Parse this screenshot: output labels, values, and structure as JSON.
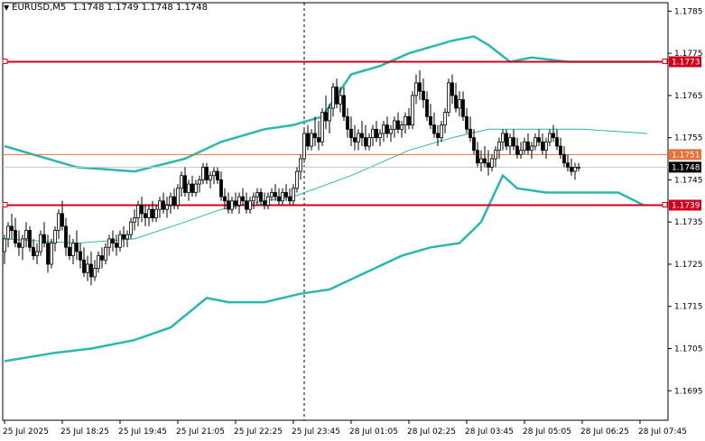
{
  "window": {
    "symbol": "EURUSD,M5",
    "ohlc": "1.1748 1.1749 1.1748 1.1748"
  },
  "colors": {
    "background": "#ffffff",
    "candle_border": "#000000",
    "candle_bull_fill": "#ffffff",
    "candle_bear_fill": "#000000",
    "bollinger": "#2ab7b0",
    "level_line": "#d0021b",
    "bid_line": "#e8703a",
    "axis": "#000000"
  },
  "chart_data": {
    "type": "candlestick",
    "title": "EURUSD,M5",
    "ylim": [
      1.1688,
      1.1787
    ],
    "y_ticks": [
      "1.1785",
      "1.1775",
      "1.1765",
      "1.1755",
      "1.1745",
      "1.1735",
      "1.1725",
      "1.1715",
      "1.1705",
      "1.1695"
    ],
    "x_ticks": [
      "25 Jul 2025",
      "25 Jul 18:25",
      "25 Jul 19:45",
      "25 Jul 21:05",
      "25 Jul 22:25",
      "25 Jul 23:45",
      "28 Jul 01:05",
      "28 Jul 02:25",
      "28 Jul 03:45",
      "28 Jul 05:05",
      "28 Jul 06:25",
      "28 Jul 07:45"
    ],
    "x_tick_index": [
      0,
      16,
      32,
      48,
      64,
      80,
      96,
      112,
      128,
      144,
      160,
      176
    ],
    "session_separator_index": 83,
    "levels": [
      {
        "price": 1.1773,
        "label": "1.1773",
        "style": "thick"
      },
      {
        "price": 1.1739,
        "label": "1.1739",
        "style": "thick"
      }
    ],
    "bid": {
      "price": 1.1751,
      "label": "1.1751"
    },
    "current_price": {
      "price": 1.1748,
      "label": "1.1748"
    },
    "candles": [
      [
        1.1728,
        1.1732,
        1.1725,
        1.1731
      ],
      [
        1.1731,
        1.1735,
        1.1729,
        1.1734
      ],
      [
        1.1734,
        1.1737,
        1.1731,
        1.1733
      ],
      [
        1.1733,
        1.1736,
        1.1729,
        1.173
      ],
      [
        1.173,
        1.1733,
        1.1727,
        1.1729
      ],
      [
        1.1729,
        1.1732,
        1.1726,
        1.1731
      ],
      [
        1.1731,
        1.1735,
        1.1729,
        1.1733
      ],
      [
        1.1733,
        1.1734,
        1.1728,
        1.1729
      ],
      [
        1.1729,
        1.1731,
        1.1726,
        1.1727
      ],
      [
        1.1727,
        1.173,
        1.1725,
        1.1728
      ],
      [
        1.1728,
        1.1733,
        1.1727,
        1.1732
      ],
      [
        1.1732,
        1.1735,
        1.1729,
        1.173
      ],
      [
        1.173,
        1.1732,
        1.1723,
        1.1725
      ],
      [
        1.1725,
        1.1731,
        1.1724,
        1.173
      ],
      [
        1.173,
        1.1734,
        1.1728,
        1.1733
      ],
      [
        1.1733,
        1.1738,
        1.1731,
        1.1737
      ],
      [
        1.1737,
        1.174,
        1.1733,
        1.1734
      ],
      [
        1.1734,
        1.1736,
        1.1727,
        1.1729
      ],
      [
        1.1729,
        1.1732,
        1.1726,
        1.1727
      ],
      [
        1.1727,
        1.1731,
        1.1725,
        1.173
      ],
      [
        1.173,
        1.1733,
        1.1726,
        1.1728
      ],
      [
        1.1728,
        1.173,
        1.1724,
        1.1726
      ],
      [
        1.1726,
        1.1729,
        1.1722,
        1.1723
      ],
      [
        1.1723,
        1.1727,
        1.1721,
        1.1725
      ],
      [
        1.1725,
        1.1728,
        1.172,
        1.1722
      ],
      [
        1.1722,
        1.1726,
        1.1721,
        1.1724
      ],
      [
        1.1724,
        1.1728,
        1.1723,
        1.1727
      ],
      [
        1.1727,
        1.1729,
        1.1724,
        1.1726
      ],
      [
        1.1726,
        1.173,
        1.1725,
        1.1729
      ],
      [
        1.1729,
        1.1732,
        1.1727,
        1.1731
      ],
      [
        1.1731,
        1.1733,
        1.1728,
        1.173
      ],
      [
        1.173,
        1.1732,
        1.1727,
        1.1729
      ],
      [
        1.1729,
        1.1733,
        1.1728,
        1.1732
      ],
      [
        1.1732,
        1.1734,
        1.1729,
        1.1731
      ],
      [
        1.1731,
        1.1733,
        1.1729,
        1.1732
      ],
      [
        1.1732,
        1.1736,
        1.1731,
        1.1735
      ],
      [
        1.1735,
        1.1738,
        1.1733,
        1.1736
      ],
      [
        1.1736,
        1.174,
        1.1734,
        1.1739
      ],
      [
        1.1739,
        1.1741,
        1.1735,
        1.1737
      ],
      [
        1.1737,
        1.1739,
        1.1734,
        1.1736
      ],
      [
        1.1736,
        1.1739,
        1.1734,
        1.1738
      ],
      [
        1.1738,
        1.174,
        1.1735,
        1.1736
      ],
      [
        1.1736,
        1.1739,
        1.1735,
        1.1738
      ],
      [
        1.1738,
        1.1741,
        1.1736,
        1.174
      ],
      [
        1.174,
        1.1742,
        1.1737,
        1.1738
      ],
      [
        1.1738,
        1.1741,
        1.1736,
        1.1739
      ],
      [
        1.1739,
        1.1742,
        1.1737,
        1.1741
      ],
      [
        1.1741,
        1.1743,
        1.1738,
        1.1739
      ],
      [
        1.1739,
        1.1744,
        1.1738,
        1.1743
      ],
      [
        1.1743,
        1.1747,
        1.1741,
        1.1746
      ],
      [
        1.1746,
        1.1748,
        1.1741,
        1.1742
      ],
      [
        1.1742,
        1.1745,
        1.174,
        1.1744
      ],
      [
        1.1744,
        1.1746,
        1.1741,
        1.1742
      ],
      [
        1.1742,
        1.1745,
        1.1741,
        1.1744
      ],
      [
        1.1744,
        1.1746,
        1.1742,
        1.1745
      ],
      [
        1.1745,
        1.1749,
        1.1744,
        1.1748
      ],
      [
        1.1748,
        1.1749,
        1.1744,
        1.1745
      ],
      [
        1.1745,
        1.1747,
        1.1743,
        1.1746
      ],
      [
        1.1746,
        1.1748,
        1.1744,
        1.1747
      ],
      [
        1.1747,
        1.1748,
        1.1744,
        1.1745
      ],
      [
        1.1745,
        1.1747,
        1.174,
        1.1741
      ],
      [
        1.1741,
        1.1743,
        1.1738,
        1.174
      ],
      [
        1.174,
        1.1742,
        1.1737,
        1.1738
      ],
      [
        1.1738,
        1.1741,
        1.1737,
        1.174
      ],
      [
        1.174,
        1.1742,
        1.1738,
        1.1739
      ],
      [
        1.1739,
        1.1742,
        1.1737,
        1.1741
      ],
      [
        1.1741,
        1.1743,
        1.1739,
        1.174
      ],
      [
        1.174,
        1.1742,
        1.1737,
        1.1738
      ],
      [
        1.1738,
        1.1741,
        1.1737,
        1.174
      ],
      [
        1.174,
        1.1742,
        1.1738,
        1.1741
      ],
      [
        1.1741,
        1.1743,
        1.1739,
        1.1742
      ],
      [
        1.1742,
        1.1743,
        1.1739,
        1.174
      ],
      [
        1.174,
        1.1742,
        1.1738,
        1.1739
      ],
      [
        1.1739,
        1.1742,
        1.1738,
        1.1741
      ],
      [
        1.1741,
        1.1743,
        1.174,
        1.1742
      ],
      [
        1.1742,
        1.1744,
        1.174,
        1.1741
      ],
      [
        1.1741,
        1.1743,
        1.1739,
        1.174
      ],
      [
        1.174,
        1.1743,
        1.1739,
        1.1742
      ],
      [
        1.1742,
        1.1744,
        1.174,
        1.1741
      ],
      [
        1.1741,
        1.1743,
        1.1739,
        1.174
      ],
      [
        1.174,
        1.1744,
        1.1739,
        1.1743
      ],
      [
        1.1743,
        1.1748,
        1.1742,
        1.1747
      ],
      [
        1.1747,
        1.1751,
        1.1745,
        1.175
      ],
      [
        1.175,
        1.1757,
        1.1749,
        1.1756
      ],
      [
        1.1756,
        1.1758,
        1.1752,
        1.1753
      ],
      [
        1.1753,
        1.1757,
        1.1752,
        1.1756
      ],
      [
        1.1756,
        1.176,
        1.1753,
        1.1755
      ],
      [
        1.1755,
        1.1759,
        1.1752,
        1.1754
      ],
      [
        1.1754,
        1.1762,
        1.1753,
        1.1761
      ],
      [
        1.1761,
        1.1765,
        1.1757,
        1.1759
      ],
      [
        1.1759,
        1.1763,
        1.1756,
        1.1762
      ],
      [
        1.1762,
        1.1768,
        1.176,
        1.1767
      ],
      [
        1.1767,
        1.1769,
        1.1762,
        1.1763
      ],
      [
        1.1763,
        1.1767,
        1.1761,
        1.1765
      ],
      [
        1.1765,
        1.1767,
        1.1759,
        1.176
      ],
      [
        1.176,
        1.1762,
        1.1755,
        1.1757
      ],
      [
        1.1757,
        1.176,
        1.1753,
        1.1755
      ],
      [
        1.1755,
        1.1758,
        1.1752,
        1.1754
      ],
      [
        1.1754,
        1.1757,
        1.1752,
        1.1756
      ],
      [
        1.1756,
        1.1759,
        1.1753,
        1.1755
      ],
      [
        1.1755,
        1.1758,
        1.1752,
        1.1753
      ],
      [
        1.1753,
        1.1756,
        1.1752,
        1.1755
      ],
      [
        1.1755,
        1.1758,
        1.1753,
        1.1757
      ],
      [
        1.1757,
        1.1759,
        1.1754,
        1.1755
      ],
      [
        1.1755,
        1.1757,
        1.1753,
        1.1756
      ],
      [
        1.1756,
        1.1759,
        1.1754,
        1.1758
      ],
      [
        1.1758,
        1.176,
        1.1755,
        1.1756
      ],
      [
        1.1756,
        1.1758,
        1.1754,
        1.1757
      ],
      [
        1.1757,
        1.176,
        1.1755,
        1.1759
      ],
      [
        1.1759,
        1.1761,
        1.1756,
        1.1757
      ],
      [
        1.1757,
        1.1759,
        1.1755,
        1.1758
      ],
      [
        1.1758,
        1.1761,
        1.1756,
        1.176
      ],
      [
        1.176,
        1.1762,
        1.1757,
        1.1758
      ],
      [
        1.1758,
        1.1766,
        1.1757,
        1.1765
      ],
      [
        1.1765,
        1.177,
        1.1763,
        1.1768
      ],
      [
        1.1768,
        1.1771,
        1.1764,
        1.1766
      ],
      [
        1.1766,
        1.1769,
        1.1762,
        1.1764
      ],
      [
        1.1764,
        1.1766,
        1.1759,
        1.176
      ],
      [
        1.176,
        1.1763,
        1.1757,
        1.1758
      ],
      [
        1.1758,
        1.1761,
        1.1755,
        1.1756
      ],
      [
        1.1756,
        1.1758,
        1.1753,
        1.1755
      ],
      [
        1.1755,
        1.1759,
        1.1754,
        1.1758
      ],
      [
        1.1758,
        1.1762,
        1.1756,
        1.1761
      ],
      [
        1.1761,
        1.1769,
        1.176,
        1.1768
      ],
      [
        1.1768,
        1.177,
        1.1763,
        1.1765
      ],
      [
        1.1765,
        1.1768,
        1.1761,
        1.1762
      ],
      [
        1.1762,
        1.1766,
        1.176,
        1.1764
      ],
      [
        1.1764,
        1.1766,
        1.1759,
        1.176
      ],
      [
        1.176,
        1.1762,
        1.1756,
        1.1757
      ],
      [
        1.1757,
        1.176,
        1.1754,
        1.1755
      ],
      [
        1.1755,
        1.1757,
        1.1751,
        1.1752
      ],
      [
        1.1752,
        1.1754,
        1.1748,
        1.1749
      ],
      [
        1.1749,
        1.1752,
        1.1747,
        1.175
      ],
      [
        1.175,
        1.1753,
        1.1748,
        1.1749
      ],
      [
        1.1749,
        1.1752,
        1.1746,
        1.1748
      ],
      [
        1.1748,
        1.1751,
        1.1747,
        1.175
      ],
      [
        1.175,
        1.1753,
        1.1748,
        1.1752
      ],
      [
        1.1752,
        1.1755,
        1.175,
        1.1754
      ],
      [
        1.1754,
        1.1757,
        1.1752,
        1.1756
      ],
      [
        1.1756,
        1.1757,
        1.1752,
        1.1753
      ],
      [
        1.1753,
        1.1756,
        1.1751,
        1.1755
      ],
      [
        1.1755,
        1.1757,
        1.1752,
        1.1753
      ],
      [
        1.1753,
        1.1755,
        1.175,
        1.1751
      ],
      [
        1.1751,
        1.1754,
        1.175,
        1.1752
      ],
      [
        1.1752,
        1.1755,
        1.1751,
        1.1754
      ],
      [
        1.1754,
        1.1756,
        1.1751,
        1.1752
      ],
      [
        1.1752,
        1.1754,
        1.175,
        1.1753
      ],
      [
        1.1753,
        1.1756,
        1.1752,
        1.1755
      ],
      [
        1.1755,
        1.1757,
        1.1753,
        1.1754
      ],
      [
        1.1754,
        1.1756,
        1.1751,
        1.1752
      ],
      [
        1.1752,
        1.1755,
        1.175,
        1.1754
      ],
      [
        1.1754,
        1.1757,
        1.1753,
        1.1756
      ],
      [
        1.1756,
        1.1758,
        1.1754,
        1.1755
      ],
      [
        1.1755,
        1.1757,
        1.1752,
        1.1753
      ],
      [
        1.1753,
        1.1755,
        1.175,
        1.1751
      ],
      [
        1.1751,
        1.1753,
        1.1748,
        1.1749
      ],
      [
        1.1749,
        1.1751,
        1.1747,
        1.1748
      ],
      [
        1.1748,
        1.175,
        1.1746,
        1.1747
      ],
      [
        1.1747,
        1.1749,
        1.1745,
        1.1748
      ],
      [
        1.1748,
        1.1749,
        1.1747,
        1.1748
      ]
    ],
    "bb_upper": [
      [
        0,
        1.1753
      ],
      [
        20,
        1.1748
      ],
      [
        36,
        1.1747
      ],
      [
        50,
        1.175
      ],
      [
        60,
        1.1754
      ],
      [
        72,
        1.1757
      ],
      [
        80,
        1.1758
      ],
      [
        88,
        1.176
      ],
      [
        96,
        1.177
      ],
      [
        104,
        1.1772
      ],
      [
        112,
        1.1775
      ],
      [
        124,
        1.1778
      ],
      [
        130,
        1.1779
      ],
      [
        134,
        1.1777
      ],
      [
        140,
        1.1773
      ],
      [
        146,
        1.1774
      ],
      [
        156,
        1.1773
      ],
      [
        170,
        1.1773
      ],
      [
        181,
        1.1773
      ]
    ],
    "bb_middle": [
      [
        0,
        1.1731
      ],
      [
        20,
        1.173
      ],
      [
        36,
        1.1731
      ],
      [
        50,
        1.1735
      ],
      [
        60,
        1.1738
      ],
      [
        72,
        1.174
      ],
      [
        80,
        1.1741
      ],
      [
        96,
        1.1746
      ],
      [
        112,
        1.1752
      ],
      [
        124,
        1.1755
      ],
      [
        134,
        1.1757
      ],
      [
        146,
        1.1757
      ],
      [
        160,
        1.1757
      ],
      [
        178,
        1.1756
      ]
    ],
    "bb_lower": [
      [
        0,
        1.1702
      ],
      [
        14,
        1.1704
      ],
      [
        24,
        1.1705
      ],
      [
        36,
        1.1707
      ],
      [
        46,
        1.171
      ],
      [
        56,
        1.1717
      ],
      [
        62,
        1.1716
      ],
      [
        72,
        1.1716
      ],
      [
        82,
        1.1718
      ],
      [
        90,
        1.1719
      ],
      [
        100,
        1.1723
      ],
      [
        110,
        1.1727
      ],
      [
        118,
        1.1729
      ],
      [
        126,
        1.173
      ],
      [
        132,
        1.1735
      ],
      [
        138,
        1.1746
      ],
      [
        142,
        1.1743
      ],
      [
        150,
        1.1742
      ],
      [
        170,
        1.1742
      ],
      [
        177,
        1.1739
      ]
    ]
  }
}
